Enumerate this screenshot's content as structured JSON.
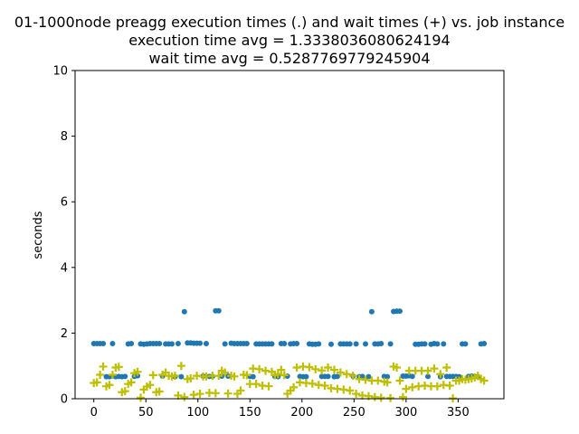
{
  "chart_data": {
    "type": "scatter",
    "title": [
      "01-1000node preagg execution times (.) and wait times (+) vs. job instance",
      "execution time avg = 1.3338036080624194",
      "wait time avg = 0.5287769779245904"
    ],
    "xlabel": "",
    "ylabel": "seconds",
    "xlim": [
      -18,
      394
    ],
    "ylim": [
      0,
      10
    ],
    "x_ticks": [
      "0",
      "50",
      "100",
      "150",
      "200",
      "250",
      "300",
      "350"
    ],
    "y_ticks": [
      "0",
      "2",
      "4",
      "6",
      "8",
      "10"
    ],
    "grid": false,
    "legend": "none",
    "series": [
      {
        "marker": "dot",
        "color": "#1f77b4",
        "x": [
          0,
          3,
          6,
          9,
          12,
          15,
          18,
          21,
          24,
          27,
          30,
          33,
          36,
          39,
          42,
          45,
          48,
          51,
          54,
          57,
          60,
          63,
          66,
          69,
          72,
          75,
          78,
          81,
          84,
          87,
          90,
          93,
          96,
          99,
          102,
          105,
          108,
          111,
          114,
          117,
          120,
          123,
          126,
          129,
          132,
          135,
          138,
          141,
          144,
          147,
          150,
          153,
          156,
          159,
          162,
          165,
          168,
          171,
          174,
          177,
          180,
          183,
          186,
          189,
          192,
          195,
          198,
          201,
          204,
          207,
          210,
          213,
          216,
          219,
          222,
          225,
          228,
          231,
          234,
          237,
          240,
          243,
          246,
          249,
          252,
          255,
          258,
          261,
          264,
          267,
          270,
          273,
          276,
          279,
          282,
          285,
          288,
          291,
          294,
          297,
          300,
          303,
          306,
          309,
          312,
          315,
          318,
          321,
          324,
          327,
          330,
          333,
          336,
          339,
          342,
          345,
          348,
          351,
          354,
          357,
          360,
          363,
          366,
          369,
          372,
          375
        ],
        "y": [
          1.68,
          1.68,
          1.68,
          1.68,
          0.67,
          0.67,
          1.68,
          0.67,
          0.68,
          0.67,
          0.68,
          1.67,
          1.68,
          0.68,
          0.7,
          1.67,
          1.66,
          1.67,
          1.68,
          1.68,
          1.68,
          1.68,
          0.69,
          1.67,
          1.67,
          1.67,
          0.67,
          1.68,
          0.67,
          2.65,
          1.7,
          1.7,
          1.69,
          1.69,
          1.69,
          0.69,
          1.68,
          0.68,
          0.68,
          2.68,
          2.68,
          0.69,
          1.67,
          0.69,
          1.69,
          1.68,
          1.68,
          1.68,
          1.68,
          1.68,
          0.68,
          0.67,
          1.67,
          1.67,
          1.67,
          1.67,
          1.67,
          1.67,
          0.68,
          0.67,
          1.68,
          1.68,
          0.69,
          1.67,
          1.68,
          1.68,
          0.68,
          0.67,
          0.67,
          1.67,
          1.66,
          1.66,
          1.67,
          0.68,
          0.68,
          0.68,
          1.66,
          0.67,
          0.68,
          1.67,
          1.67,
          1.67,
          1.67,
          0.69,
          1.67,
          0.67,
          0.68,
          1.67,
          0.67,
          2.65,
          1.67,
          1.67,
          1.68,
          0.68,
          0.67,
          1.67,
          2.66,
          2.67,
          2.67,
          0.69,
          0.69,
          0.7,
          0.68,
          1.66,
          1.66,
          1.67,
          1.67,
          0.68,
          1.66,
          1.68,
          1.67,
          0.67,
          1.67,
          0.68,
          0.68,
          0.68,
          0.68,
          0.67,
          1.67,
          1.67,
          0.68,
          0.69,
          0.68,
          0.67,
          1.67,
          1.68
        ]
      },
      {
        "marker": "plus",
        "color": "#bfbf00",
        "x": [
          0,
          3,
          6,
          9,
          12,
          15,
          18,
          21,
          24,
          27,
          30,
          33,
          36,
          39,
          42,
          45,
          48,
          51,
          54,
          57,
          60,
          63,
          66,
          69,
          72,
          75,
          78,
          81,
          84,
          87,
          90,
          93,
          96,
          99,
          102,
          105,
          108,
          111,
          114,
          117,
          120,
          123,
          126,
          129,
          132,
          135,
          138,
          141,
          144,
          147,
          150,
          153,
          156,
          159,
          162,
          165,
          168,
          171,
          174,
          177,
          180,
          183,
          186,
          189,
          192,
          195,
          198,
          201,
          204,
          207,
          210,
          213,
          216,
          219,
          222,
          225,
          228,
          231,
          234,
          237,
          240,
          243,
          246,
          249,
          252,
          255,
          258,
          261,
          264,
          267,
          270,
          273,
          276,
          279,
          282,
          285,
          288,
          291,
          294,
          297,
          300,
          303,
          306,
          309,
          312,
          315,
          318,
          321,
          324,
          327,
          330,
          333,
          336,
          339,
          342,
          345,
          348,
          351,
          354,
          357,
          360,
          363,
          366,
          369,
          372,
          375
        ],
        "y": [
          0.48,
          0.5,
          0.73,
          0.98,
          0.38,
          0.42,
          0.73,
          0.95,
          0.97,
          0.2,
          0.23,
          0.45,
          0.5,
          0.78,
          0.82,
          0.03,
          0.28,
          0.37,
          0.42,
          0.72,
          0.2,
          0.22,
          0.73,
          0.8,
          0.7,
          0.68,
          0.7,
          0.1,
          1.0,
          0.05,
          0.6,
          0.62,
          0.12,
          0.7,
          0.15,
          0.68,
          0.68,
          0.18,
          0.7,
          0.17,
          0.7,
          0.85,
          0.8,
          0.16,
          0.7,
          0.68,
          0.15,
          0.25,
          0.73,
          0.72,
          0.45,
          0.92,
          0.45,
          0.9,
          0.4,
          0.85,
          0.38,
          0.82,
          0.72,
          0.75,
          0.88,
          0.72,
          0.15,
          0.25,
          0.35,
          0.95,
          0.5,
          0.98,
          0.48,
          0.96,
          0.46,
          0.9,
          0.42,
          0.86,
          0.4,
          0.95,
          0.32,
          0.88,
          0.3,
          0.8,
          0.28,
          0.75,
          0.25,
          0.7,
          0.15,
          0.6,
          0.1,
          0.58,
          0.08,
          0.55,
          0.05,
          0.55,
          0.03,
          0.52,
          0.5,
          0.02,
          0.98,
          0.95,
          0.55,
          0.05,
          0.3,
          0.85,
          0.35,
          0.85,
          0.38,
          0.85,
          0.4,
          0.85,
          0.38,
          0.92,
          0.38,
          0.75,
          0.42,
          0.95,
          0.4,
          0.01,
          0.55,
          0.55,
          0.6,
          0.58,
          0.6,
          0.62,
          0.65,
          0.7,
          0.6,
          0.55
        ]
      }
    ]
  }
}
